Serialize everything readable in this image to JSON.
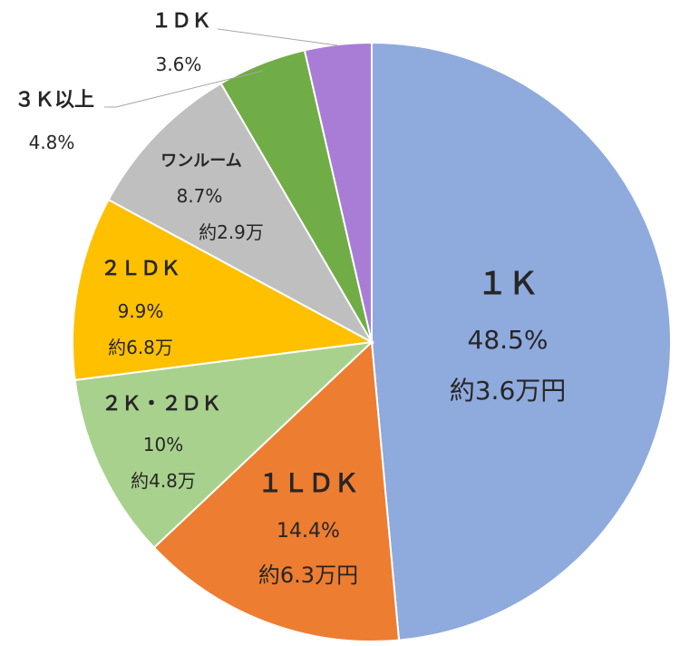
{
  "chart_data": {
    "type": "pie",
    "title": "",
    "slices": [
      {
        "name": "１Ｋ",
        "percent_label": "48.5%",
        "rent_label": "約3.6万円",
        "value": 48.5,
        "color": "#8FAADC"
      },
      {
        "name": "１ＬＤＫ",
        "percent_label": "14.4%",
        "rent_label": "約6.3万円",
        "value": 14.4,
        "color": "#ED7D31"
      },
      {
        "name": "２Ｋ・２ＤＫ",
        "percent_label": "10%",
        "rent_label": "約4.8万",
        "value": 10.0,
        "color": "#A9D18E"
      },
      {
        "name": "２ＬＤＫ",
        "percent_label": "9.9%",
        "rent_label": "約6.8万",
        "value": 9.9,
        "color": "#FFC000"
      },
      {
        "name": "ワンルーム",
        "percent_label": "8.7%",
        "rent_label": "約2.9万",
        "value": 8.7,
        "color": "#BFBFBF"
      },
      {
        "name": "３Ｋ以上",
        "percent_label": "4.8%",
        "rent_label": "",
        "value": 4.8,
        "color": "#70AD47"
      },
      {
        "name": "１ＤＫ",
        "percent_label": "3.6%",
        "rent_label": "",
        "value": 3.6,
        "color": "#A97DD6"
      }
    ]
  }
}
